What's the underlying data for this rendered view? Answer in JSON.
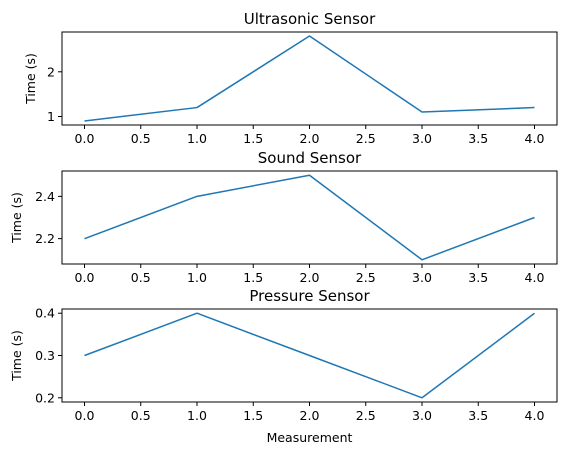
{
  "chart_data": [
    {
      "type": "line",
      "title": "Ultrasonic Sensor",
      "xlabel": "",
      "ylabel": "Time (s)",
      "x": [
        0,
        1,
        2,
        3,
        4
      ],
      "series": [
        {
          "values": [
            0.9,
            1.2,
            2.8,
            1.1,
            1.2
          ]
        }
      ],
      "xlim": [
        -0.2,
        4.2
      ],
      "ylim": [
        0.81,
        2.89
      ],
      "xticks": [
        0,
        0.5,
        1,
        1.5,
        2,
        2.5,
        3,
        3.5,
        4
      ],
      "xtick_labels": [
        "0.0",
        "0.5",
        "1.0",
        "1.5",
        "2.0",
        "2.5",
        "3.0",
        "3.5",
        "4.0"
      ],
      "yticks": [
        1,
        2
      ],
      "ytick_labels": [
        "1",
        "2"
      ],
      "grid": false,
      "color": "#1f77b4"
    },
    {
      "type": "line",
      "title": "Sound Sensor",
      "xlabel": "",
      "ylabel": "Time (s)",
      "x": [
        0,
        1,
        2,
        3,
        4
      ],
      "series": [
        {
          "values": [
            2.2,
            2.4,
            2.5,
            2.1,
            2.3
          ]
        }
      ],
      "xlim": [
        -0.2,
        4.2
      ],
      "ylim": [
        2.08,
        2.52
      ],
      "xticks": [
        0,
        0.5,
        1,
        1.5,
        2,
        2.5,
        3,
        3.5,
        4
      ],
      "xtick_labels": [
        "0.0",
        "0.5",
        "1.0",
        "1.5",
        "2.0",
        "2.5",
        "3.0",
        "3.5",
        "4.0"
      ],
      "yticks": [
        2.2,
        2.4
      ],
      "ytick_labels": [
        "2.2",
        "2.4"
      ],
      "grid": false,
      "color": "#1f77b4"
    },
    {
      "type": "line",
      "title": "Pressure Sensor",
      "xlabel": "Measurement",
      "ylabel": "Time (s)",
      "x": [
        0,
        1,
        2,
        3,
        4
      ],
      "series": [
        {
          "values": [
            0.3,
            0.4,
            0.3,
            0.2,
            0.4
          ]
        }
      ],
      "xlim": [
        -0.2,
        4.2
      ],
      "ylim": [
        0.19,
        0.41
      ],
      "xticks": [
        0,
        0.5,
        1,
        1.5,
        2,
        2.5,
        3,
        3.5,
        4
      ],
      "xtick_labels": [
        "0.0",
        "0.5",
        "1.0",
        "1.5",
        "2.0",
        "2.5",
        "3.0",
        "3.5",
        "4.0"
      ],
      "yticks": [
        0.2,
        0.3,
        0.4
      ],
      "ytick_labels": [
        "0.2",
        "0.3",
        "0.4"
      ],
      "grid": false,
      "color": "#1f77b4"
    }
  ]
}
